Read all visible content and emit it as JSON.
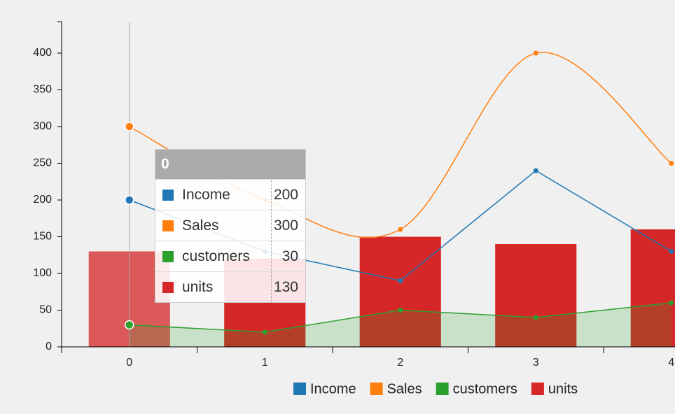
{
  "chart_data": {
    "type": "combo",
    "categories": [
      0,
      1,
      2,
      3,
      4
    ],
    "series": [
      {
        "name": "Income",
        "color": "#1f77b4",
        "kind": "line",
        "values": [
          200,
          130,
          90,
          240,
          130
        ]
      },
      {
        "name": "Sales",
        "color": "#ff7f0e",
        "kind": "spline",
        "values": [
          300,
          200,
          160,
          400,
          250
        ]
      },
      {
        "name": "customers",
        "color": "#2ca02c",
        "kind": "area",
        "values": [
          30,
          20,
          50,
          40,
          60
        ]
      },
      {
        "name": "units",
        "color": "#d62728",
        "kind": "bar",
        "values": [
          130,
          120,
          150,
          140,
          160
        ]
      }
    ],
    "ylim": [
      0,
      440
    ],
    "yticks": [
      0,
      50,
      100,
      150,
      200,
      250,
      300,
      350,
      400
    ]
  }
}
